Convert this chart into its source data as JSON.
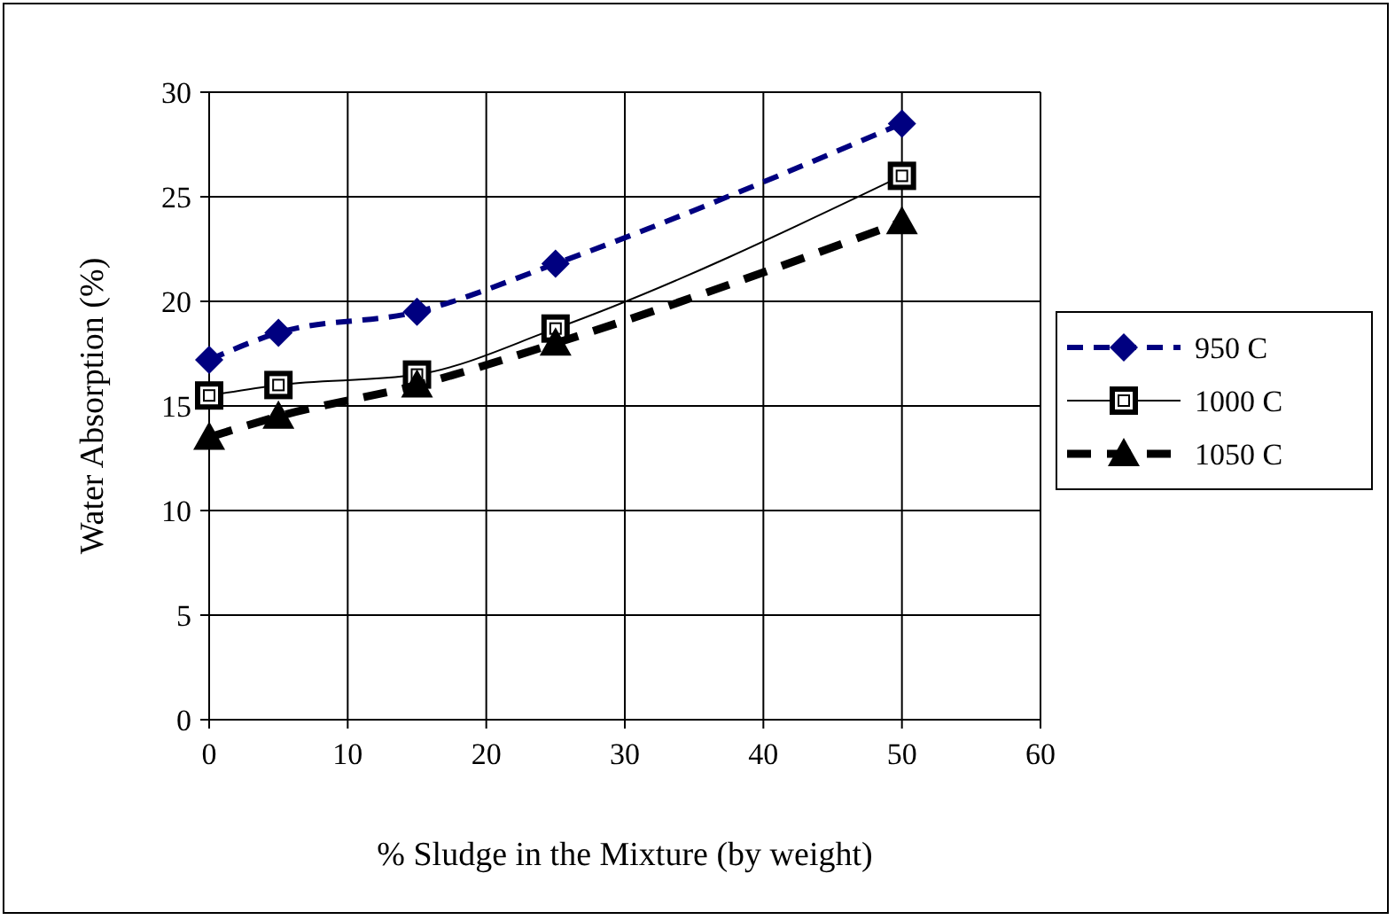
{
  "chart_data": {
    "type": "line",
    "xlabel": "% Sludge in the Mixture (by weight)",
    "ylabel": "Water Absorption (%)",
    "xlim": [
      0,
      60
    ],
    "xticks": [
      0,
      10,
      20,
      30,
      40,
      50,
      60
    ],
    "ylim": [
      0,
      30
    ],
    "yticks": [
      0,
      5,
      10,
      15,
      20,
      25,
      30
    ],
    "grid": true,
    "legend": "right",
    "x": [
      0,
      5,
      15,
      25,
      50
    ],
    "series": [
      {
        "name": "950 C",
        "color": "#000080",
        "values": [
          17.2,
          18.5,
          19.5,
          21.8,
          28.5
        ],
        "marker": "diamond",
        "line_style": "dashed"
      },
      {
        "name": "1000 C",
        "color": "#000000",
        "values": [
          15.5,
          16,
          16.5,
          18.7,
          26
        ],
        "marker": "square",
        "line_style": "solid"
      },
      {
        "name": "1050 C",
        "color": "#000000",
        "values": [
          13.5,
          14.5,
          16,
          18,
          23.8
        ],
        "marker": "triangle",
        "line_style": "dashed"
      }
    ]
  }
}
